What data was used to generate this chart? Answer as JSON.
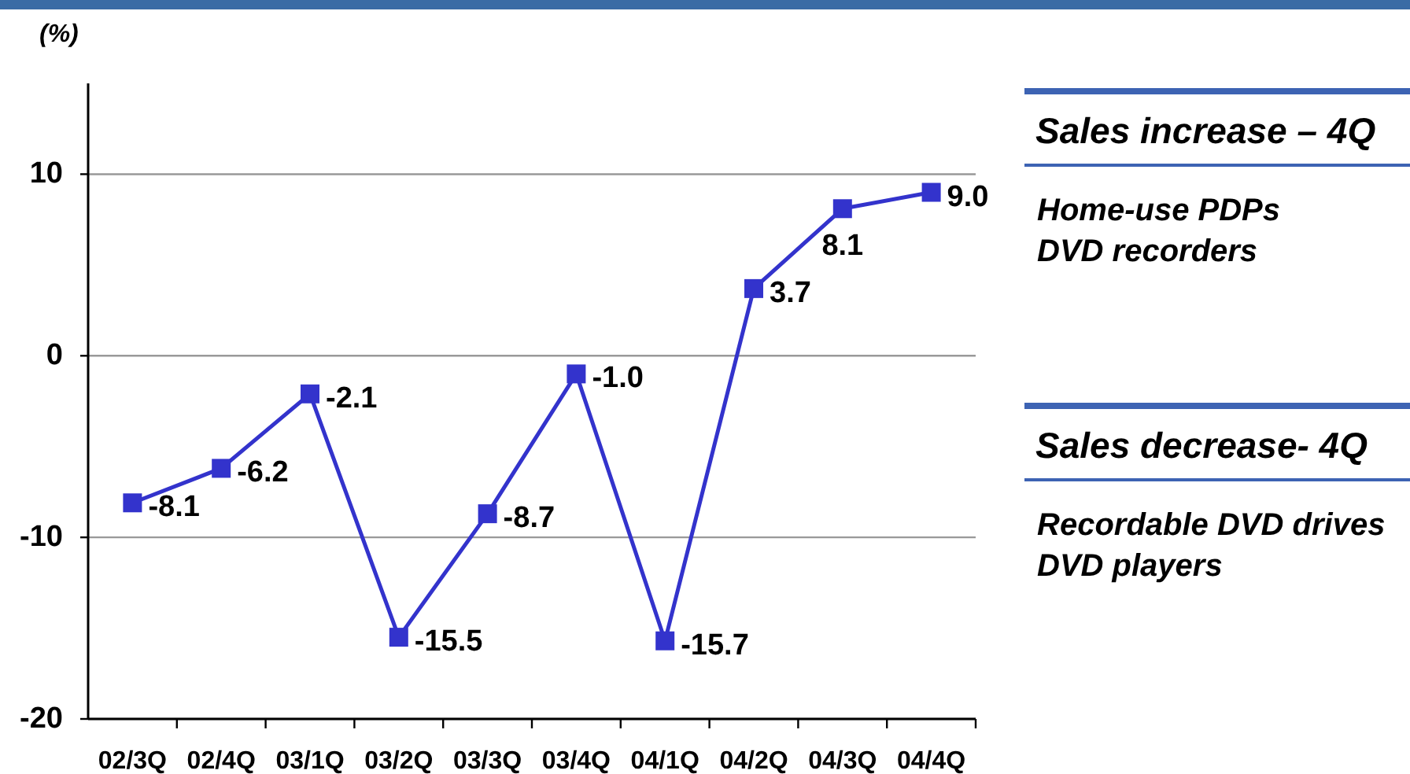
{
  "chart_data": {
    "type": "line",
    "ylabel": "(%)",
    "categories": [
      "02/3Q",
      "02/4Q",
      "03/1Q",
      "03/2Q",
      "03/3Q",
      "03/4Q",
      "04/1Q",
      "04/2Q",
      "04/3Q",
      "04/4Q"
    ],
    "series": [
      {
        "color": "#3333cc",
        "values": [
          -8.1,
          -6.2,
          -2.1,
          -15.5,
          -8.7,
          -1.0,
          -15.7,
          3.7,
          8.1,
          9.0
        ],
        "value_labels": [
          "-8.1",
          "-6.2",
          "-2.1",
          "-15.5",
          "-8.7",
          "-1.0",
          "-15.7",
          "3.7",
          "8.1",
          "9.0"
        ]
      }
    ],
    "ylim": [
      -20,
      15
    ],
    "yticks": [
      -20,
      -10,
      0,
      10
    ],
    "grid": "y",
    "marker": "square",
    "line_style": "solid",
    "annotations": [
      "Sales increase – 4Q",
      "Home-use PDPs\nDVD recorders",
      "Sales decrease- 4Q",
      "Recordable DVD drives\nDVD players"
    ]
  }
}
